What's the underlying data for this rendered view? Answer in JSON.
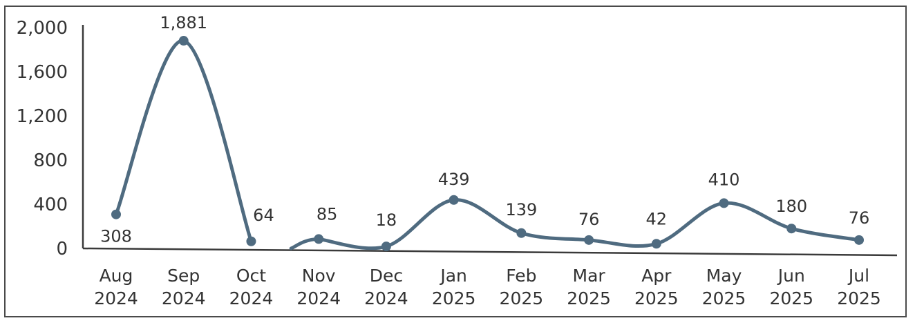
{
  "chart_data": {
    "type": "line",
    "title": "",
    "xlabel": "",
    "ylabel": "",
    "smooth": true,
    "grid": false,
    "legend": "none",
    "ylim": [
      0,
      2000
    ],
    "yticks": [
      "2,000",
      "1,600",
      "1,200",
      "800",
      "400",
      "0"
    ],
    "ytick_values": [
      2000,
      1600,
      1200,
      800,
      400,
      0
    ],
    "categories": [
      [
        "Aug",
        "2024"
      ],
      [
        "Sep",
        "2024"
      ],
      [
        "Oct",
        "2024"
      ],
      [
        "Nov",
        "2024"
      ],
      [
        "Dec",
        "2024"
      ],
      [
        "Jan",
        "2025"
      ],
      [
        "Feb",
        "2025"
      ],
      [
        "Mar",
        "2025"
      ],
      [
        "Apr",
        "2025"
      ],
      [
        "May",
        "2025"
      ],
      [
        "Jun",
        "2025"
      ],
      [
        "Jul",
        "2025"
      ]
    ],
    "segments": [
      {
        "values": [
          308,
          1881,
          64
        ],
        "data_labels": [
          "308",
          "1,881",
          "64"
        ]
      },
      {
        "values": [
          85,
          18,
          439,
          139,
          76,
          42,
          410,
          180,
          76
        ],
        "data_labels": [
          "85",
          "18",
          "439",
          "139",
          "76",
          "42",
          "410",
          "180",
          "76"
        ]
      }
    ],
    "colors": {
      "line": "#4f6b80",
      "marker": "#4f6b80",
      "axis": "#3a3a3a",
      "text": "#333333"
    }
  }
}
